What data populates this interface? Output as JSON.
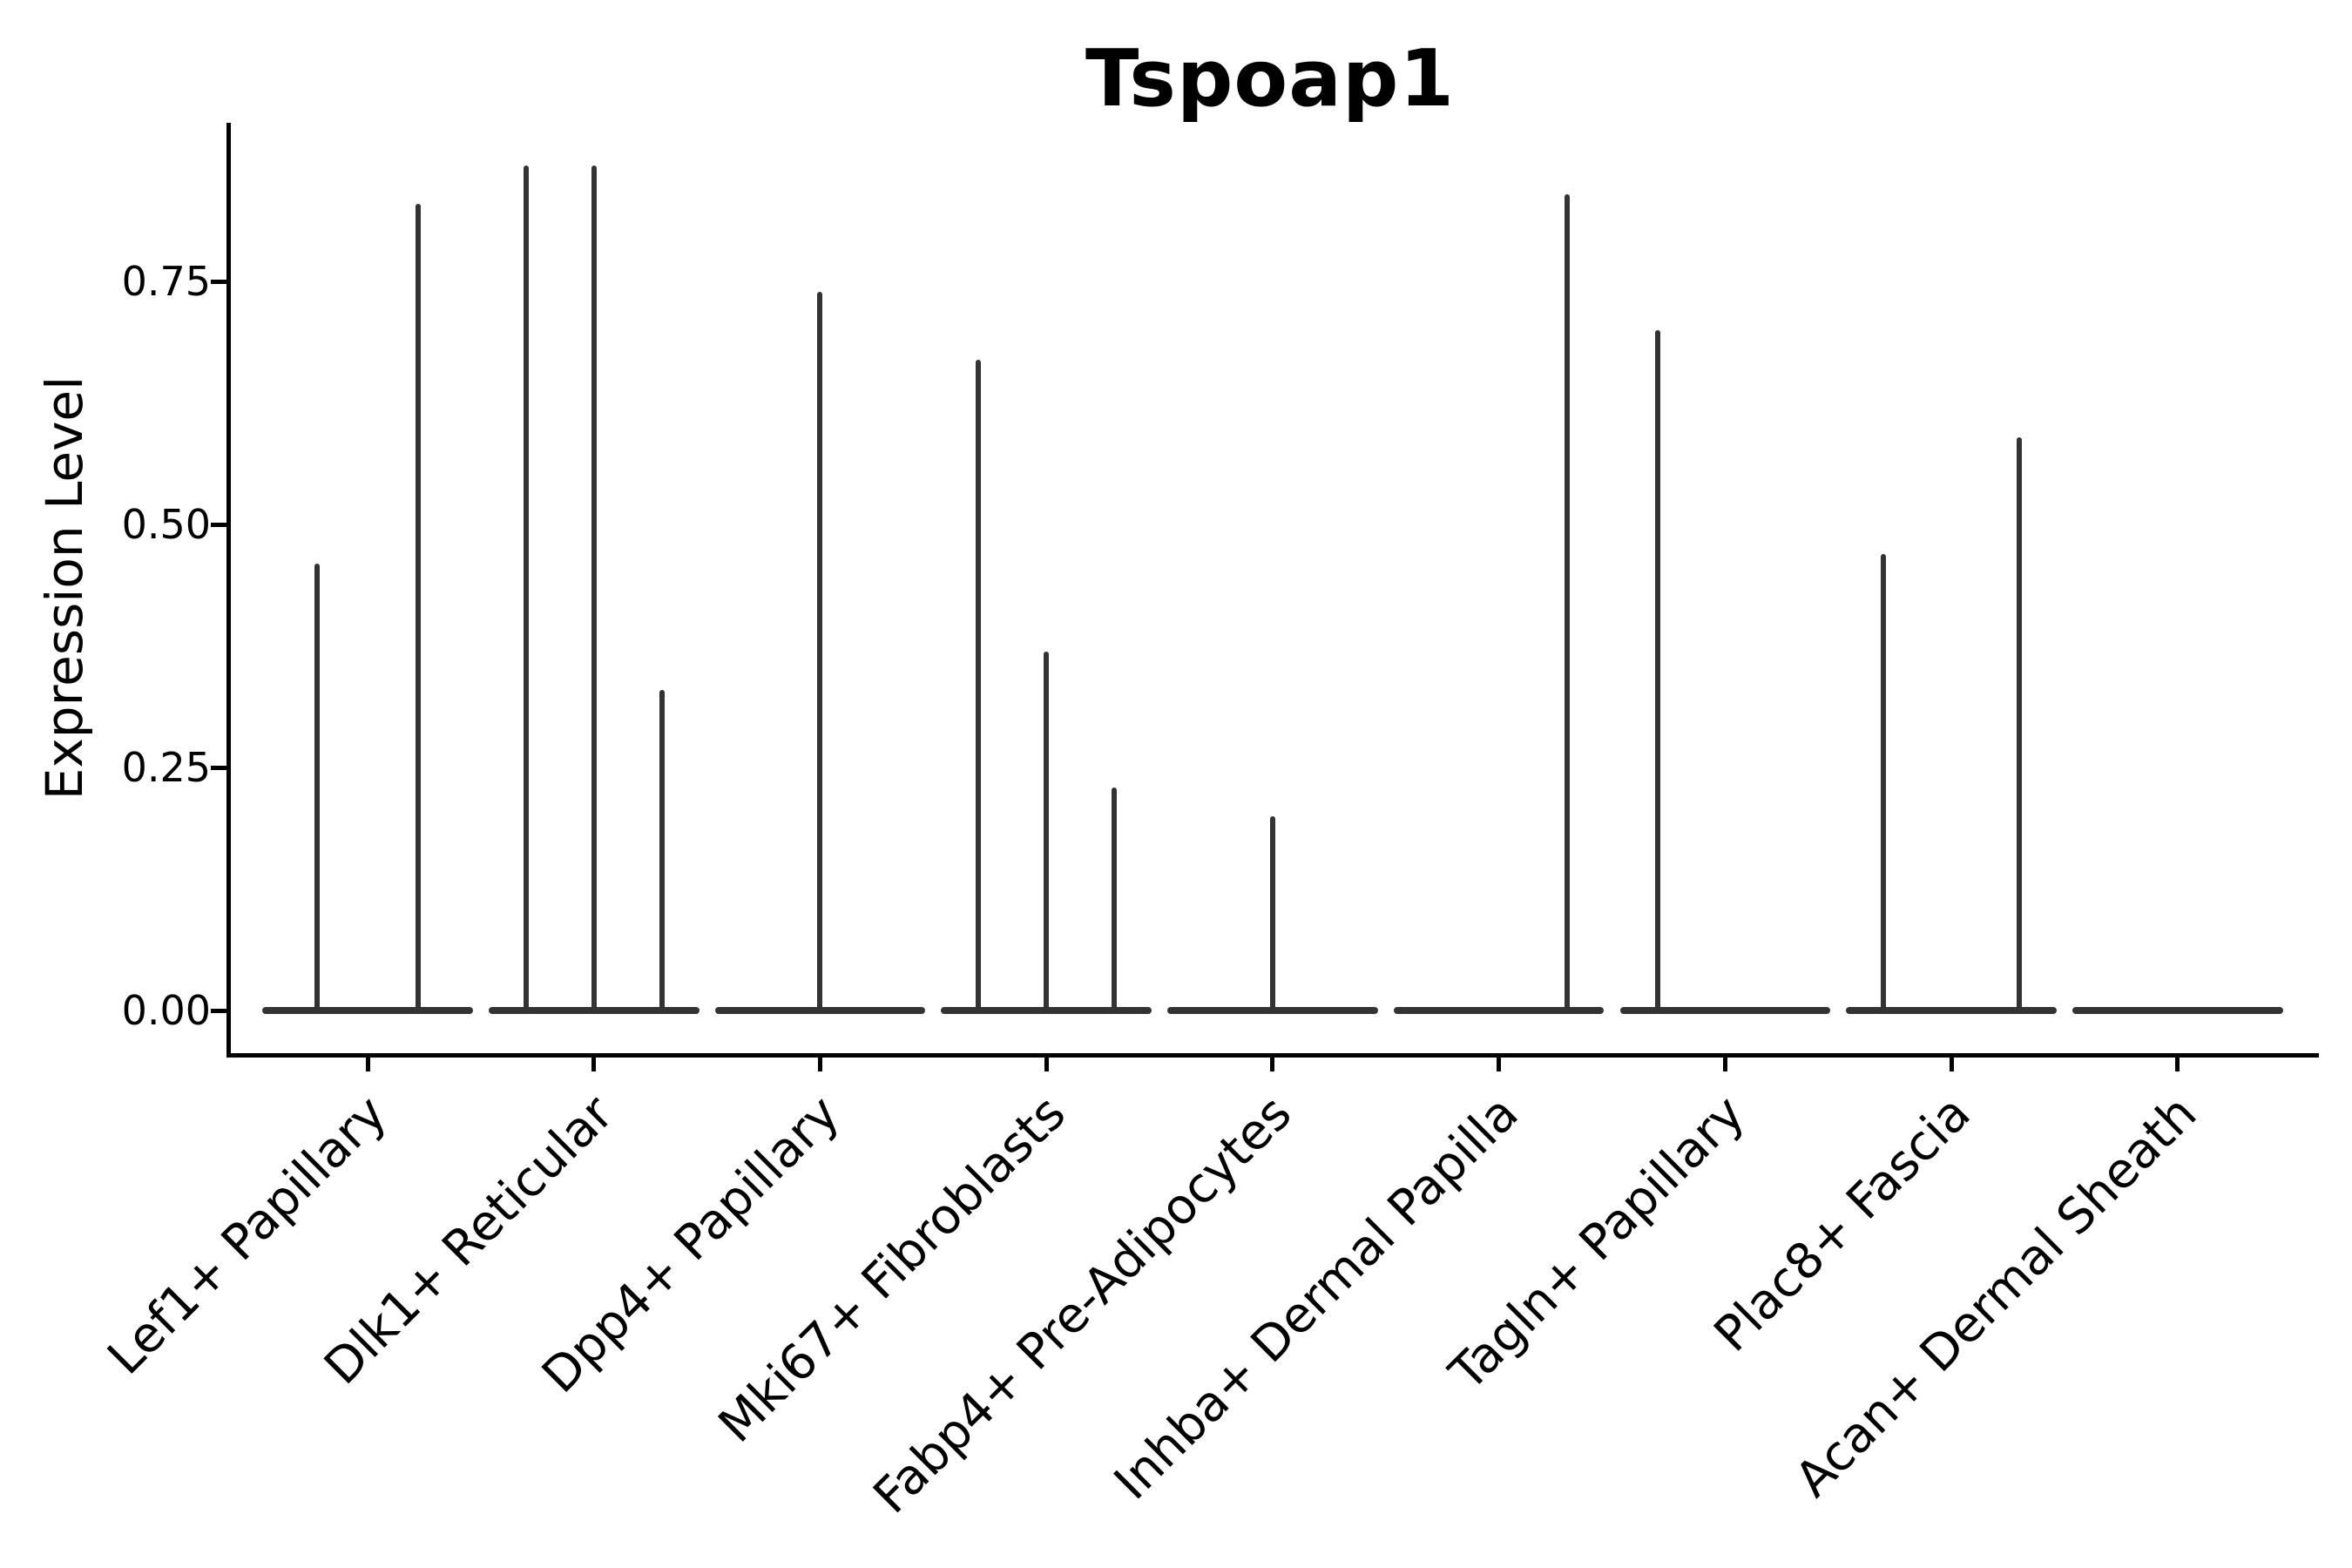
{
  "chart_data": {
    "type": "violin",
    "title": "Tspoap1",
    "ylabel": "Expression Level",
    "xlabel": "",
    "ytick_labels": [
      "0.00",
      "0.25",
      "0.50",
      "0.75"
    ],
    "ytick_values": [
      0,
      0.25,
      0.5,
      0.75
    ],
    "ylim": [
      -0.0435,
      0.9135
    ],
    "grid": "off",
    "legend": "none",
    "categories": [
      "Lef1+ Papillary",
      "Dlk1+ Reticular",
      "Dpp4+ Papillary",
      "Mki67+ Fibroblasts",
      "Fabp4+ Pre-Adipocytes",
      "Inhba+ Dermal Papilla",
      "Tagln+ Papillary",
      "Plac8+ Fascia",
      "Acan+ Dermal Sheath"
    ],
    "violins": [
      {
        "category": "Lef1+ Papillary",
        "base_value": 0,
        "peaks": [
          {
            "pos": -0.225,
            "max_expression": 0.46
          },
          {
            "pos": 0.225,
            "max_expression": 0.83
          }
        ]
      },
      {
        "category": "Dlk1+ Reticular",
        "base_value": 0,
        "peaks": [
          {
            "pos": -0.3,
            "max_expression": 0.87
          },
          {
            "pos": 0,
            "max_expression": 0.87
          },
          {
            "pos": 0.3,
            "max_expression": 0.33
          }
        ]
      },
      {
        "category": "Dpp4+ Papillary",
        "base_value": 0,
        "peaks": [
          {
            "pos": 0,
            "max_expression": 0.74
          }
        ]
      },
      {
        "category": "Mki67+ Fibroblasts",
        "base_value": 0,
        "peaks": [
          {
            "pos": -0.3,
            "max_expression": 0.67
          },
          {
            "pos": 0,
            "max_expression": 0.37
          },
          {
            "pos": 0.3,
            "max_expression": 0.23
          }
        ]
      },
      {
        "category": "Fabp4+ Pre-Adipocytes",
        "base_value": 0,
        "peaks": [
          {
            "pos": 0,
            "max_expression": 0.2
          }
        ]
      },
      {
        "category": "Inhba+ Dermal Papilla",
        "base_value": 0,
        "peaks": [
          {
            "pos": 0.3,
            "max_expression": 0.84
          }
        ]
      },
      {
        "category": "Tagln+ Papillary",
        "base_value": 0,
        "peaks": [
          {
            "pos": -0.3,
            "max_expression": 0.7
          }
        ]
      },
      {
        "category": "Plac8+ Fascia",
        "base_value": 0,
        "peaks": [
          {
            "pos": -0.3,
            "max_expression": 0.47
          },
          {
            "pos": 0.3,
            "max_expression": 0.59
          }
        ]
      },
      {
        "category": "Acan+ Dermal Sheath",
        "base_value": 0,
        "peaks": []
      }
    ],
    "style": {
      "violin_color": "#333333",
      "axis_color": "#000000",
      "background": "#ffffff",
      "base_width_frac": 0.93
    }
  }
}
